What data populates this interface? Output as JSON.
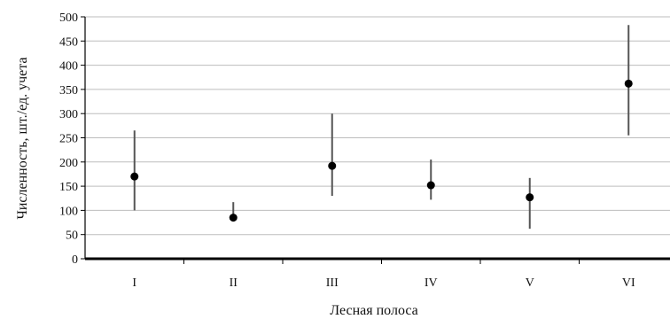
{
  "chart_data": {
    "type": "scatter",
    "title": "",
    "xlabel": "Лесная полоса",
    "ylabel": "Численность, шт./ед. учета",
    "categories": [
      "I",
      "II",
      "III",
      "IV",
      "V",
      "VI"
    ],
    "series": [
      {
        "values": [
          170,
          85,
          192,
          152,
          127,
          362
        ],
        "error_low": [
          100,
          77,
          130,
          122,
          62,
          255
        ],
        "error_high": [
          265,
          117,
          300,
          205,
          167,
          483
        ]
      }
    ],
    "ylim": [
      0,
      500
    ],
    "yticks": [
      0,
      50,
      100,
      150,
      200,
      250,
      300,
      350,
      400,
      450,
      500
    ],
    "grid": true,
    "legend": "none",
    "colors": {
      "point": "#000000",
      "errorbar": "#555555",
      "grid": "#bdbdbd",
      "axis": "#000000"
    }
  }
}
